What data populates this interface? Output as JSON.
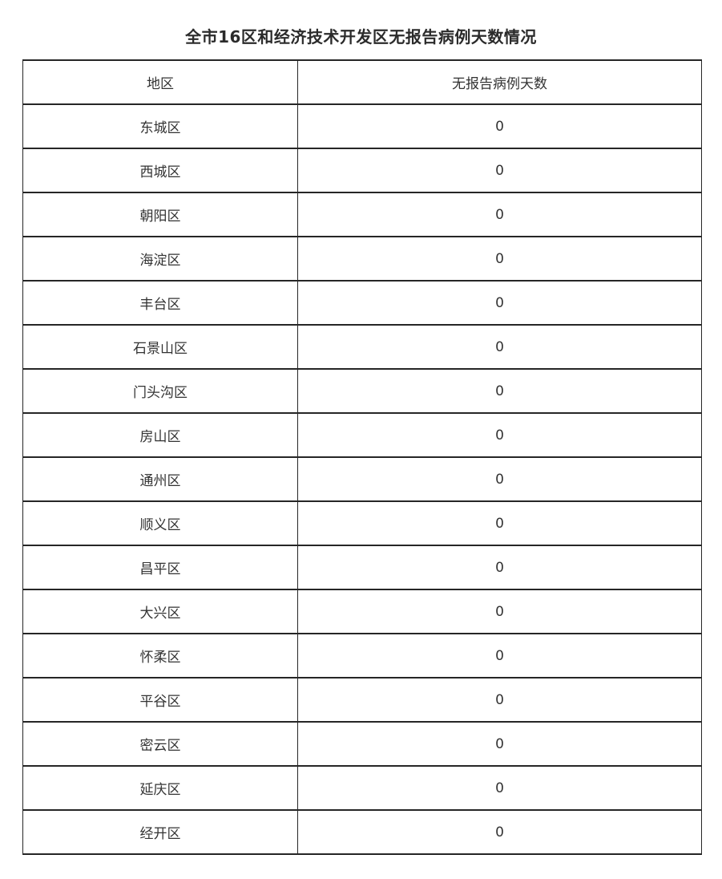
{
  "page": {
    "background_color": "#ffffff",
    "text_color": "#333333",
    "border_color": "#262626"
  },
  "title": "全市16区和经济技术开发区无报告病例天数情况",
  "table": {
    "headers": [
      "地区",
      "无报告病例天数"
    ],
    "rows": [
      {
        "region": "东城区",
        "days": "0"
      },
      {
        "region": "西城区",
        "days": "0"
      },
      {
        "region": "朝阳区",
        "days": "0"
      },
      {
        "region": "海淀区",
        "days": "0"
      },
      {
        "region": "丰台区",
        "days": "0"
      },
      {
        "region": "石景山区",
        "days": "0"
      },
      {
        "region": "门头沟区",
        "days": "0"
      },
      {
        "region": "房山区",
        "days": "0"
      },
      {
        "region": "通州区",
        "days": "0"
      },
      {
        "region": "顺义区",
        "days": "0"
      },
      {
        "region": "昌平区",
        "days": "0"
      },
      {
        "region": "大兴区",
        "days": "0"
      },
      {
        "region": "怀柔区",
        "days": "0"
      },
      {
        "region": "平谷区",
        "days": "0"
      },
      {
        "region": "密云区",
        "days": "0"
      },
      {
        "region": "延庆区",
        "days": "0"
      },
      {
        "region": "经开区",
        "days": "0"
      }
    ]
  },
  "chart_data": {
    "type": "table",
    "title": "全市16区和经济技术开发区无报告病例天数情况",
    "columns": [
      "地区",
      "无报告病例天数"
    ],
    "rows": [
      [
        "东城区",
        0
      ],
      [
        "西城区",
        0
      ],
      [
        "朝阳区",
        0
      ],
      [
        "海淀区",
        0
      ],
      [
        "丰台区",
        0
      ],
      [
        "石景山区",
        0
      ],
      [
        "门头沟区",
        0
      ],
      [
        "房山区",
        0
      ],
      [
        "通州区",
        0
      ],
      [
        "顺义区",
        0
      ],
      [
        "昌平区",
        0
      ],
      [
        "大兴区",
        0
      ],
      [
        "怀柔区",
        0
      ],
      [
        "平谷区",
        0
      ],
      [
        "密云区",
        0
      ],
      [
        "延庆区",
        0
      ],
      [
        "经开区",
        0
      ]
    ],
    "layout": {
      "grid": true,
      "header_row": true,
      "all_values_zero": true
    }
  }
}
